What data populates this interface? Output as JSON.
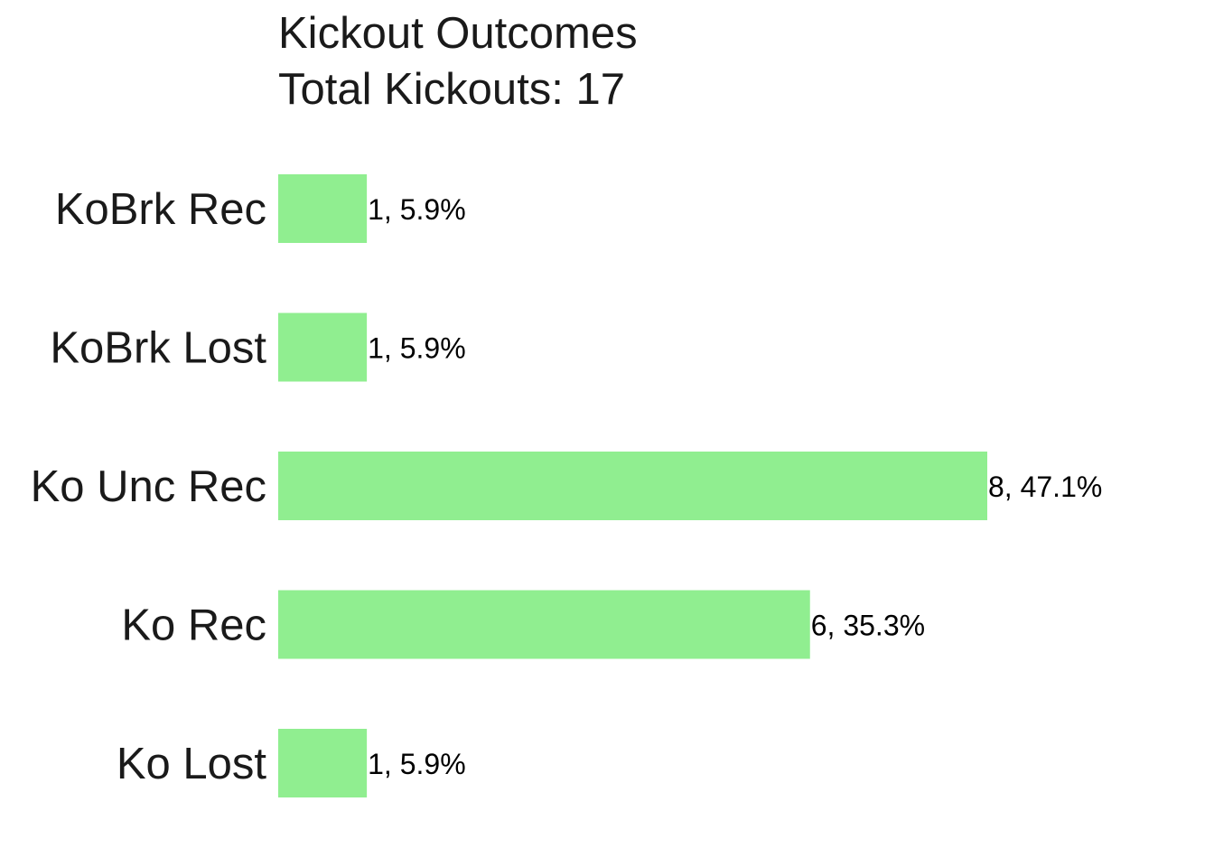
{
  "chart_data": {
    "type": "bar",
    "orientation": "horizontal",
    "title": "Kickout Outcomes",
    "subtitle": "Total Kickouts: 17",
    "categories": [
      "KoBrk Rec",
      "KoBrk Lost",
      "Ko Unc Rec",
      "Ko Rec",
      "Ko Lost"
    ],
    "values": [
      1,
      1,
      8,
      6,
      1
    ],
    "data_labels": [
      "1, 5.9%",
      "1, 5.9%",
      "8, 47.1%",
      "6, 35.3%",
      "1, 5.9%"
    ],
    "xlim": [
      0,
      8
    ],
    "grid": false,
    "legend": "none",
    "bar_color": "#90EE90",
    "text_color": "#1a1a1a"
  }
}
